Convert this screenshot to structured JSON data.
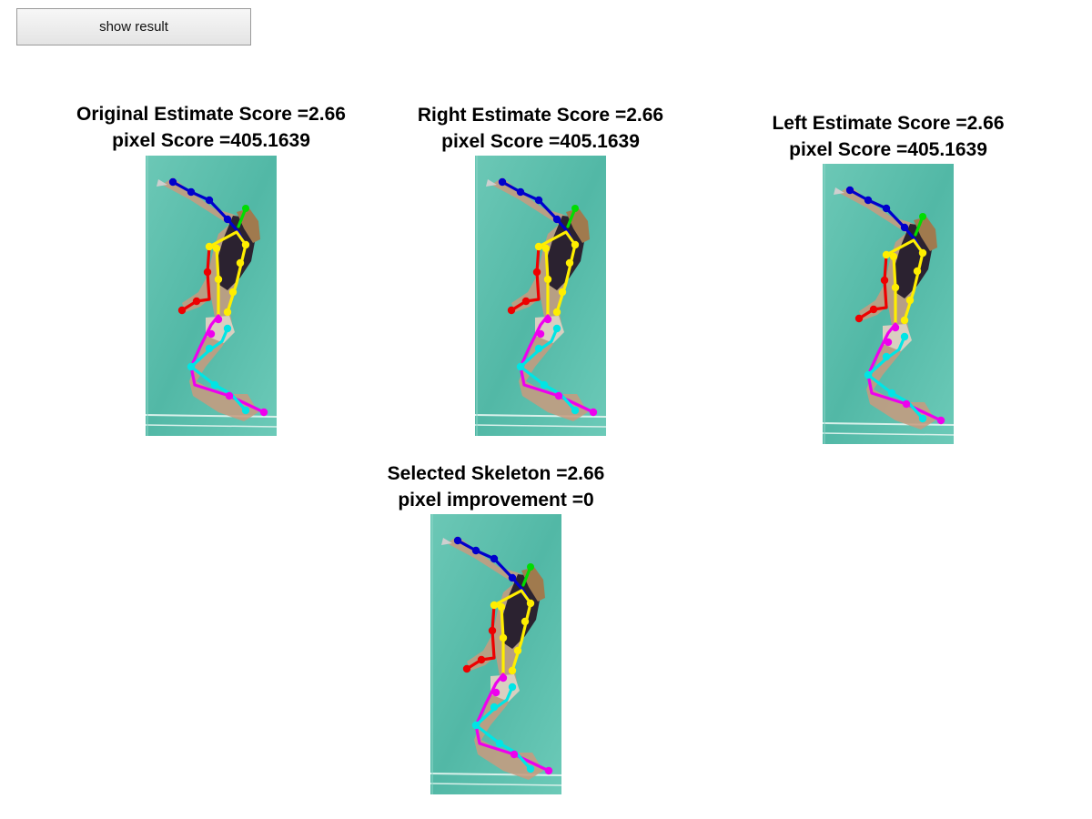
{
  "toolbar": {
    "show_result_label": "show result"
  },
  "panels": [
    {
      "id": "original",
      "line1": "Original Estimate Score =2.66",
      "line2": "pixel Score =405.1639"
    },
    {
      "id": "right",
      "line1": "Right Estimate Score =2.66",
      "line2": "pixel Score =405.1639"
    },
    {
      "id": "left",
      "line1": "Left Estimate Score =2.66",
      "line2": "pixel Score =405.1639"
    },
    {
      "id": "selected",
      "line1": "Selected Skeleton =2.66",
      "line2": "pixel improvement =0"
    }
  ],
  "colors": {
    "court_background": "#5cbfae",
    "head": "#00dd00",
    "right_arm": "#0000cc",
    "left_arm": "#ee0000",
    "torso": "#ffee00",
    "right_leg": "#00e5e5",
    "left_leg": "#ee00ee"
  }
}
